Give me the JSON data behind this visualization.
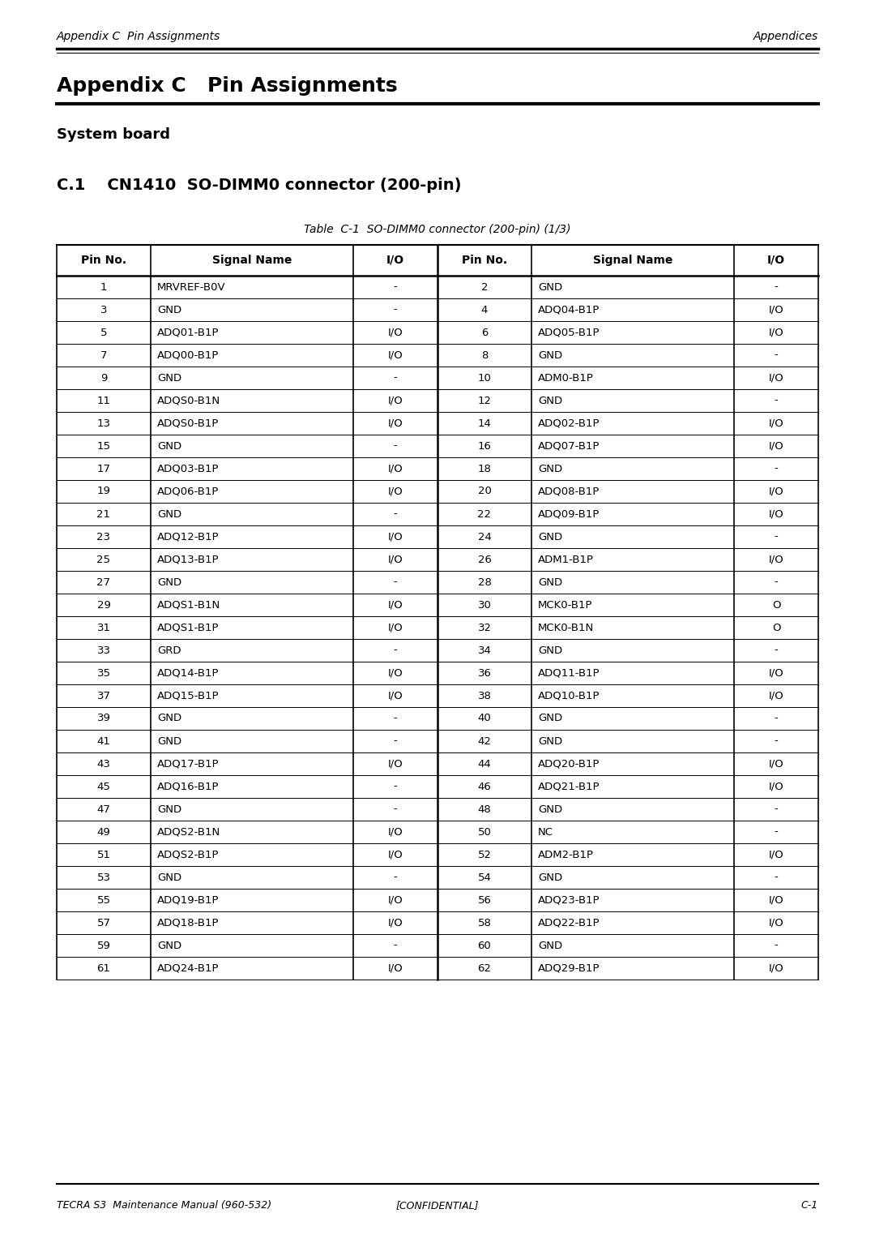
{
  "header_left": "Appendix C  Pin Assignments",
  "header_right": "Appendices",
  "footer_left": "TECRA S3  Maintenance Manual (960-532)",
  "footer_center": "[CONFIDENTIAL]",
  "footer_right": "C-1",
  "title_appendix": "Appendix C   Pin Assignments",
  "subtitle": "System board",
  "section": "C.1    CN1410  SO-DIMM0 connector (200-pin)",
  "table_caption": "Table  C-1  SO-DIMM0 connector (200-pin) (1/3)",
  "col_headers": [
    "Pin No.",
    "Signal Name",
    "I/O",
    "Pin No.",
    "Signal Name",
    "I/O"
  ],
  "rows": [
    [
      "1",
      "MRVREF-B0V",
      "-",
      "2",
      "GND",
      "-"
    ],
    [
      "3",
      "GND",
      "-",
      "4",
      "ADQ04-B1P",
      "I/O"
    ],
    [
      "5",
      "ADQ01-B1P",
      "I/O",
      "6",
      "ADQ05-B1P",
      "I/O"
    ],
    [
      "7",
      "ADQ00-B1P",
      "I/O",
      "8",
      "GND",
      "-"
    ],
    [
      "9",
      "GND",
      "-",
      "10",
      "ADM0-B1P",
      "I/O"
    ],
    [
      "11",
      "ADQS0-B1N",
      "I/O",
      "12",
      "GND",
      "-"
    ],
    [
      "13",
      "ADQS0-B1P",
      "I/O",
      "14",
      "ADQ02-B1P",
      "I/O"
    ],
    [
      "15",
      "GND",
      "-",
      "16",
      "ADQ07-B1P",
      "I/O"
    ],
    [
      "17",
      "ADQ03-B1P",
      "I/O",
      "18",
      "GND",
      "-"
    ],
    [
      "19",
      "ADQ06-B1P",
      "I/O",
      "20",
      "ADQ08-B1P",
      "I/O"
    ],
    [
      "21",
      "GND",
      "-",
      "22",
      "ADQ09-B1P",
      "I/O"
    ],
    [
      "23",
      "ADQ12-B1P",
      "I/O",
      "24",
      "GND",
      "-"
    ],
    [
      "25",
      "ADQ13-B1P",
      "I/O",
      "26",
      "ADM1-B1P",
      "I/O"
    ],
    [
      "27",
      "GND",
      "-",
      "28",
      "GND",
      "-"
    ],
    [
      "29",
      "ADQS1-B1N",
      "I/O",
      "30",
      "MCK0-B1P",
      "O"
    ],
    [
      "31",
      "ADQS1-B1P",
      "I/O",
      "32",
      "MCK0-B1N",
      "O"
    ],
    [
      "33",
      "GRD",
      "-",
      "34",
      "GND",
      "-"
    ],
    [
      "35",
      "ADQ14-B1P",
      "I/O",
      "36",
      "ADQ11-B1P",
      "I/O"
    ],
    [
      "37",
      "ADQ15-B1P",
      "I/O",
      "38",
      "ADQ10-B1P",
      "I/O"
    ],
    [
      "39",
      "GND",
      "-",
      "40",
      "GND",
      "-"
    ],
    [
      "41",
      "GND",
      "-",
      "42",
      "GND",
      "-"
    ],
    [
      "43",
      "ADQ17-B1P",
      "I/O",
      "44",
      "ADQ20-B1P",
      "I/O"
    ],
    [
      "45",
      "ADQ16-B1P",
      "-",
      "46",
      "ADQ21-B1P",
      "I/O"
    ],
    [
      "47",
      "GND",
      "-",
      "48",
      "GND",
      "-"
    ],
    [
      "49",
      "ADQS2-B1N",
      "I/O",
      "50",
      "NC",
      "-"
    ],
    [
      "51",
      "ADQS2-B1P",
      "I/O",
      "52",
      "ADM2-B1P",
      "I/O"
    ],
    [
      "53",
      "GND",
      "-",
      "54",
      "GND",
      "-"
    ],
    [
      "55",
      "ADQ19-B1P",
      "I/O",
      "56",
      "ADQ23-B1P",
      "I/O"
    ],
    [
      "57",
      "ADQ18-B1P",
      "I/O",
      "58",
      "ADQ22-B1P",
      "I/O"
    ],
    [
      "59",
      "GND",
      "-",
      "60",
      "GND",
      "-"
    ],
    [
      "61",
      "ADQ24-B1P",
      "I/O",
      "62",
      "ADQ29-B1P",
      "I/O"
    ]
  ],
  "bg_color": "#ffffff",
  "text_color": "#000000"
}
